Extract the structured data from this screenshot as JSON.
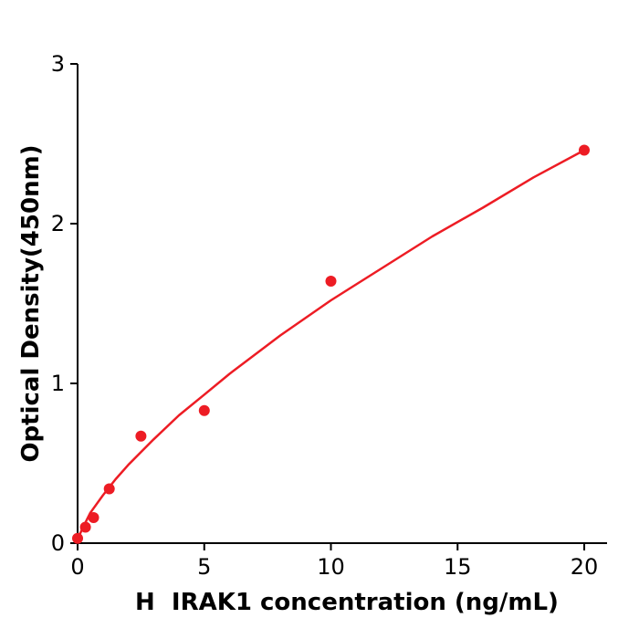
{
  "chart_data": {
    "type": "scatter",
    "title": "",
    "xlabel": "H  IRAK1 concentration (ng/mL)",
    "ylabel": "Optical Density(450nm)",
    "xlim": [
      0,
      20.9
    ],
    "ylim": [
      0,
      3
    ],
    "x_ticks": [
      0,
      5,
      10,
      15,
      20
    ],
    "y_ticks": [
      0,
      1,
      2,
      3
    ],
    "grid": false,
    "legend": false,
    "marker_color": "#ed1c24",
    "line_color": "#ed1c24",
    "axis_color": "#000000",
    "points": {
      "x": [
        0,
        0.31,
        0.63,
        1.25,
        2.5,
        5,
        10,
        20
      ],
      "y": [
        0.03,
        0.1,
        0.16,
        0.34,
        0.67,
        0.83,
        1.64,
        2.46
      ]
    },
    "fit_curve": {
      "x": [
        0,
        0.05,
        0.1,
        0.25,
        0.5,
        1,
        1.5,
        2,
        2.5,
        3,
        4,
        5,
        6,
        8,
        10,
        12,
        14,
        16,
        18,
        20
      ],
      "y": [
        0.01,
        0.04,
        0.06,
        0.11,
        0.19,
        0.3,
        0.4,
        0.49,
        0.57,
        0.65,
        0.8,
        0.93,
        1.06,
        1.3,
        1.52,
        1.72,
        1.92,
        2.1,
        2.29,
        2.46
      ]
    }
  }
}
